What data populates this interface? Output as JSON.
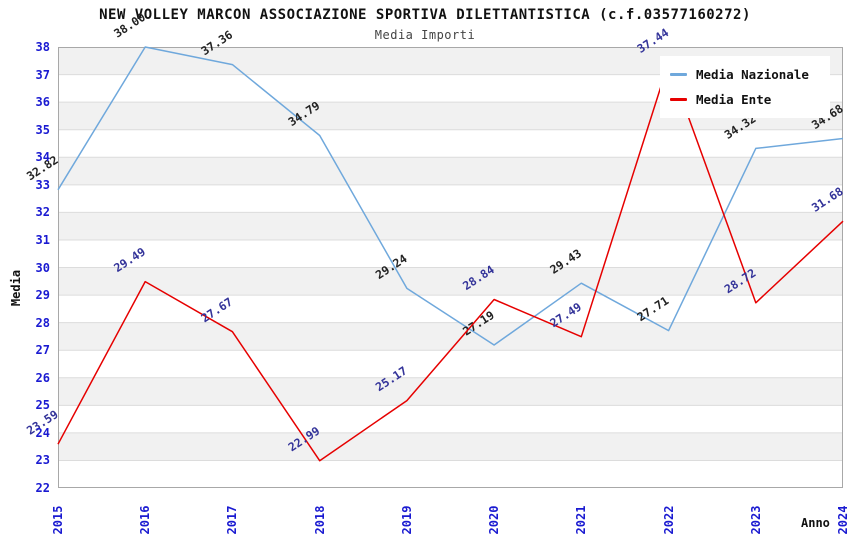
{
  "header": {
    "title": "NEW VOLLEY MARCON ASSOCIAZIONE SPORTIVA DILETTANTISTICA (c.f.03577160272)",
    "subtitle": "Media Importi"
  },
  "axes": {
    "y_label": "Media",
    "x_label": "Anno",
    "y_ticks": [
      22,
      23,
      24,
      25,
      26,
      27,
      28,
      29,
      30,
      31,
      32,
      33,
      34,
      35,
      36,
      37,
      38
    ],
    "x_ticks": [
      "2015",
      "2016",
      "2017",
      "2018",
      "2019",
      "2020",
      "2021",
      "2022",
      "2023",
      "2024"
    ]
  },
  "legend": {
    "position": "top-right",
    "items": [
      {
        "label": "Media Nazionale",
        "color": "#6fa8dc"
      },
      {
        "label": "Media Ente",
        "color": "#e60000"
      }
    ]
  },
  "chart_data": {
    "type": "line",
    "title": "NEW VOLLEY MARCON ASSOCIAZIONE SPORTIVA DILETTANTISTICA (c.f.03577160272)",
    "subtitle": "Media Importi",
    "xlabel": "Anno",
    "ylabel": "Media",
    "ylim": [
      22,
      38
    ],
    "grid": true,
    "alternating_bands": true,
    "legend_position": "top-right",
    "categories": [
      "2015",
      "2016",
      "2017",
      "2018",
      "2019",
      "2020",
      "2021",
      "2022",
      "2023",
      "2024"
    ],
    "series": [
      {
        "name": "Media Nazionale",
        "color": "#6fa8dc",
        "label_color": "#222222",
        "values": [
          32.82,
          38.0,
          37.36,
          34.79,
          29.24,
          27.19,
          29.43,
          27.71,
          34.32,
          34.68
        ]
      },
      {
        "name": "Media Ente",
        "color": "#e60000",
        "label_color": "#333399",
        "values": [
          23.59,
          29.49,
          27.67,
          22.99,
          25.17,
          28.84,
          27.49,
          37.44,
          28.72,
          31.68
        ]
      }
    ]
  },
  "colors": {
    "tick_label": "#1a1ad1",
    "axis_title": "#111111",
    "band_gray": "#f1f1f1",
    "band_white": "#ffffff",
    "gridline": "#dcdcdc",
    "plot_border": "#a8a8a8",
    "background": "#ffffff"
  }
}
